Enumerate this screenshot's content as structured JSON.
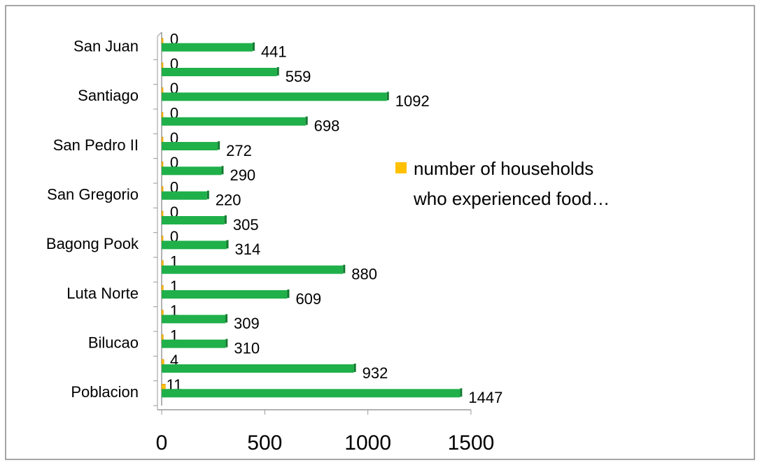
{
  "chart_data": {
    "type": "bar",
    "orientation": "horizontal",
    "categories": [
      "Poblacion",
      null,
      "Bilucao",
      null,
      "Luta Norte",
      null,
      "Bagong Pook",
      null,
      "San Gregorio",
      null,
      "San Pedro II",
      null,
      "Santiago",
      null,
      "San Juan"
    ],
    "series": [
      {
        "name": "number of households who experienced food…",
        "color": "#ffc000",
        "values": [
          11,
          4,
          1,
          1,
          1,
          1,
          0,
          0,
          0,
          0,
          0,
          0,
          0,
          0,
          0
        ]
      },
      {
        "color": "#1fb04a",
        "values": [
          1447,
          932,
          310,
          309,
          609,
          880,
          314,
          305,
          220,
          290,
          272,
          698,
          1092,
          559,
          441
        ]
      }
    ],
    "xlim": [
      0,
      1500
    ],
    "xticks": [
      0,
      500,
      1000,
      1500
    ],
    "legend": "right"
  }
}
